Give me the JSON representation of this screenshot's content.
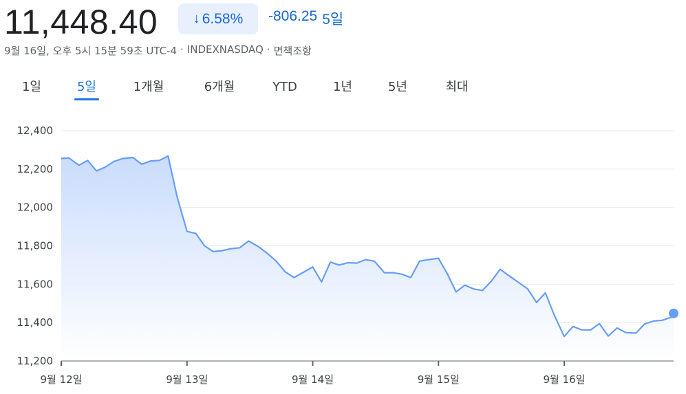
{
  "header": {
    "price": "11,448.40",
    "change_pct": "6.58%",
    "change_abs": "-806.25",
    "period": "5일",
    "meta": [
      "9월 16일, 오후 5시 15분 59초 UTC-4",
      "·",
      "INDEXNASDAQ",
      "·",
      "면책조항"
    ]
  },
  "tabs": [
    "1일",
    "5일",
    "1개월",
    "6개월",
    "YTD",
    "1년",
    "5년",
    "최대"
  ],
  "active_tab": "5일",
  "colors": {
    "line": "#669df6",
    "fill_top": "#c6dafc",
    "accent": "#1a73e8",
    "grid": "#e8eaed"
  },
  "icons": {
    "change_arrow": "arrow-down-icon"
  },
  "chart_data": {
    "type": "area",
    "title": "",
    "xlabel": "",
    "ylabel": "",
    "ylim": [
      11200,
      12400
    ],
    "yticks": [
      12400,
      12200,
      12000,
      11800,
      11600,
      11400,
      11200
    ],
    "ytick_labels": [
      "12,400",
      "12,200",
      "12,000",
      "11,800",
      "11,600",
      "11,400",
      "11,200"
    ],
    "xtick_labels": [
      "9월 12일",
      "9월 13일",
      "9월 14일",
      "9월 15일",
      "9월 16일"
    ],
    "xlim": [
      0,
      4.87
    ],
    "grid": true,
    "legend": "none",
    "x": [
      0.0,
      0.06,
      0.14,
      0.21,
      0.28,
      0.35,
      0.42,
      0.49,
      0.57,
      0.64,
      0.71,
      0.78,
      0.85,
      0.92,
      1.0,
      1.07,
      1.14,
      1.21,
      1.28,
      1.35,
      1.42,
      1.49,
      1.57,
      1.64,
      1.71,
      1.78,
      1.85,
      1.92,
      2.0,
      2.07,
      2.14,
      2.21,
      2.28,
      2.35,
      2.42,
      2.49,
      2.57,
      2.64,
      2.71,
      2.78,
      2.85,
      2.92,
      3.0,
      3.07,
      3.14,
      3.21,
      3.28,
      3.35,
      3.42,
      3.49,
      3.57,
      3.64,
      3.71,
      3.78,
      3.85,
      3.92,
      4.0,
      4.07,
      4.14,
      4.21,
      4.28,
      4.35,
      4.42,
      4.49,
      4.57,
      4.64,
      4.71,
      4.78,
      4.85,
      4.87
    ],
    "values": [
      12255,
      12258,
      12220,
      12245,
      12190,
      12210,
      12240,
      12255,
      12260,
      12225,
      12242,
      12245,
      12268,
      12060,
      11875,
      11865,
      11800,
      11770,
      11775,
      11785,
      11790,
      11825,
      11795,
      11760,
      11720,
      11665,
      11635,
      11660,
      11690,
      11612,
      11715,
      11700,
      11712,
      11710,
      11728,
      11720,
      11660,
      11660,
      11652,
      11635,
      11720,
      11728,
      11735,
      11655,
      11560,
      11595,
      11575,
      11568,
      11615,
      11678,
      11640,
      11608,
      11575,
      11505,
      11555,
      11440,
      11328,
      11380,
      11362,
      11362,
      11395,
      11330,
      11372,
      11348,
      11345,
      11393,
      11408,
      11412,
      11428,
      11448
    ]
  }
}
